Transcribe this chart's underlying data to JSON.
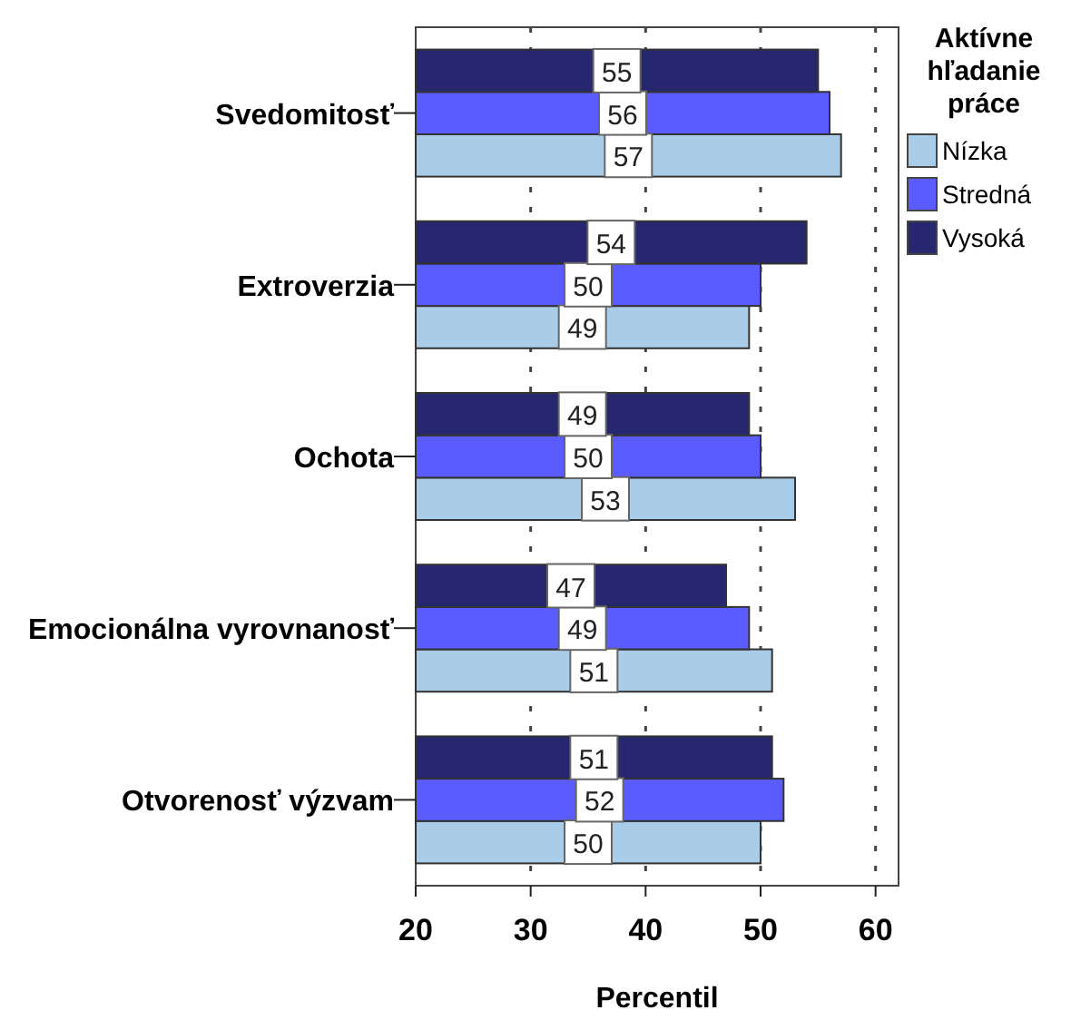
{
  "chart_data": {
    "type": "bar",
    "orientation": "horizontal",
    "xlabel": "Percentil",
    "legend_title": "Aktívne hľadanie práce",
    "legend": "right",
    "categories": [
      "Svedomitosť",
      "Extroverzia",
      "Ochota",
      "Emocionálna vyrovnanosť",
      "Otvorenosť výzvam"
    ],
    "series": [
      {
        "name": "Nízka",
        "color": "#a9cde9",
        "values": [
          57,
          49,
          53,
          51,
          50
        ]
      },
      {
        "name": "Stredná",
        "color": "#5a5cff",
        "values": [
          56,
          50,
          50,
          49,
          52
        ]
      },
      {
        "name": "Vysoká",
        "color": "#272770",
        "values": [
          55,
          54,
          49,
          47,
          51
        ]
      }
    ],
    "xlim": [
      20,
      62
    ],
    "xticks": [
      20,
      30,
      40,
      50,
      60
    ],
    "grid": "x",
    "data_labels": true
  }
}
